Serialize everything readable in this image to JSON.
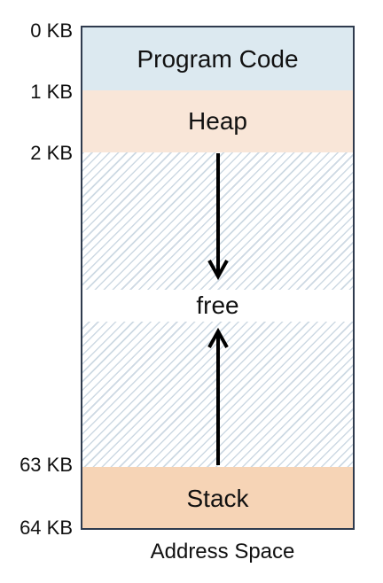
{
  "address_labels": {
    "kb0": "0 KB",
    "kb1": "1 KB",
    "kb2": "2 KB",
    "kb63": "63 KB",
    "kb64": "64 KB"
  },
  "regions": {
    "program_code": "Program Code",
    "heap": "Heap",
    "free": "free",
    "stack": "Stack"
  },
  "caption": "Address Space",
  "colors": {
    "program_code": "#dce9f0",
    "heap": "#f9e6d8",
    "stack": "#f6d4b6",
    "free_hatch": "#cdd9e3",
    "border": "#2f3b4e"
  }
}
